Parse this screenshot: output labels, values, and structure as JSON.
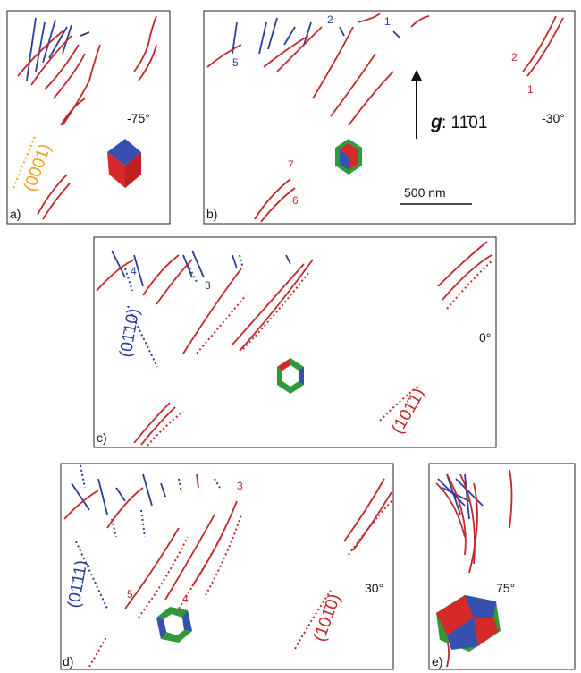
{
  "panels": [
    {
      "label": "a)",
      "angle": "-75°",
      "planes": [
        "(0001)"
      ]
    },
    {
      "label": "b)",
      "angle": "-30°",
      "g_symbol": "g",
      "g_index": ": 11̄01",
      "scale": "500 nm",
      "markers": [
        "5",
        "2",
        "1",
        "2",
        "1",
        "7",
        "6"
      ]
    },
    {
      "label": "c)",
      "angle": "0°",
      "planes": [
        "(01̄10)",
        "(101̄1)"
      ],
      "markers": [
        "4",
        "3"
      ]
    },
    {
      "label": "d)",
      "angle": "30°",
      "planes": [
        "(01̄11)",
        "(101̄0)"
      ],
      "markers": [
        "3",
        "5",
        "4"
      ]
    },
    {
      "label": "e)",
      "angle": "75°"
    }
  ]
}
